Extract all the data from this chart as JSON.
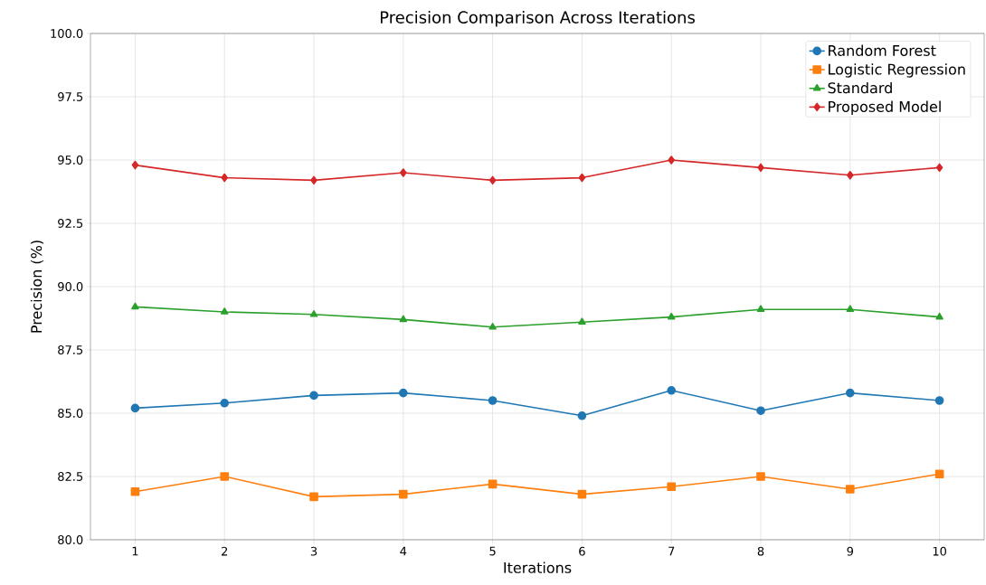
{
  "chart_data": {
    "type": "line",
    "title": "Precision Comparison Across Iterations",
    "xlabel": "Iterations",
    "ylabel": "Precision (%)",
    "x": [
      1,
      2,
      3,
      4,
      5,
      6,
      7,
      8,
      9,
      10
    ],
    "series": [
      {
        "name": "Random Forest",
        "color": "#1f77b4",
        "marker": "circle",
        "values": [
          85.2,
          85.4,
          85.7,
          85.8,
          85.5,
          84.9,
          85.9,
          85.1,
          85.8,
          85.5
        ]
      },
      {
        "name": "Logistic Regression",
        "color": "#ff7f0e",
        "marker": "square",
        "values": [
          81.9,
          82.5,
          81.7,
          81.8,
          82.2,
          81.8,
          82.1,
          82.5,
          82.0,
          82.6
        ]
      },
      {
        "name": "Standard",
        "color": "#2ca02c",
        "marker": "triangle",
        "values": [
          89.2,
          89.0,
          88.9,
          88.7,
          88.4,
          88.6,
          88.8,
          89.1,
          89.1,
          88.8
        ]
      },
      {
        "name": "Proposed Model",
        "color": "#d62728",
        "marker": "diamond",
        "values": [
          94.8,
          94.3,
          94.2,
          94.5,
          94.2,
          94.3,
          95.0,
          94.7,
          94.4,
          94.7
        ]
      }
    ],
    "xlim": [
      0.5,
      10.5
    ],
    "xticks": [
      1,
      2,
      3,
      4,
      5,
      6,
      7,
      8,
      9,
      10
    ],
    "ylim": [
      80,
      100
    ],
    "yticks": [
      {
        "value": 80,
        "label": "80.0"
      },
      {
        "value": 82.5,
        "label": "82.5"
      },
      {
        "value": 85,
        "label": "85.0"
      },
      {
        "value": 87.5,
        "label": "87.5"
      },
      {
        "value": 90,
        "label": "90.0"
      },
      {
        "value": 92.5,
        "label": "92.5"
      },
      {
        "value": 95,
        "label": "95.0"
      },
      {
        "value": 97.5,
        "label": "97.5"
      },
      {
        "value": 100,
        "label": "100.0"
      }
    ],
    "grid": true,
    "legend": "top right",
    "line_style": "solid"
  }
}
